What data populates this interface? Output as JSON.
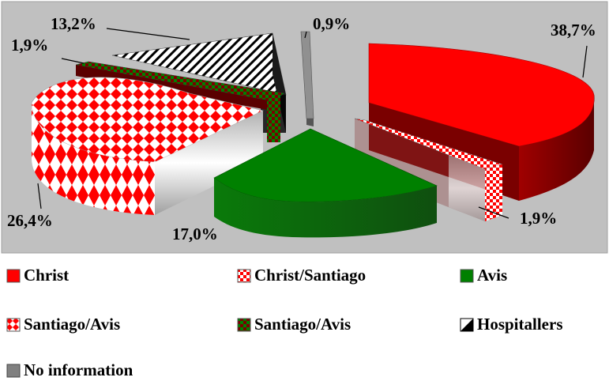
{
  "chart_data": {
    "type": "pie",
    "title": "",
    "slices": [
      {
        "label": "Christ",
        "value": 38.7,
        "value_label": "38,7%",
        "color": "#ff0000",
        "side": "#7a0000",
        "pattern": "solid"
      },
      {
        "label": "Christ/Santiago",
        "value": 1.9,
        "value_label": "1,9%",
        "color": "#ff0000",
        "side": "#8a2a2a",
        "pattern": "checker"
      },
      {
        "label": "Avis",
        "value": 17.0,
        "value_label": "17,0%",
        "color": "#008000",
        "side": "#0f5f0f",
        "pattern": "solid"
      },
      {
        "label": "Santiago/Avis",
        "value": 26.4,
        "value_label": "26,4%",
        "color": "#ff0000",
        "side": "#ff3a3a",
        "pattern": "diamond"
      },
      {
        "label": "Santiago/Avis",
        "value": 1.9,
        "value_label": "1,9%",
        "color": "#008000",
        "side": "#5a0000",
        "pattern": "green-red"
      },
      {
        "label": "Hospitallers",
        "value": 13.2,
        "value_label": "13,2%",
        "color": "#000000",
        "side": "#111111",
        "pattern": "stripes"
      },
      {
        "label": "No information",
        "value": 0.9,
        "value_label": "0,9%",
        "color": "#808080",
        "side": "#505050",
        "pattern": "solid"
      }
    ],
    "legend_position": "bottom",
    "plot_background": "#c0c0c0"
  }
}
